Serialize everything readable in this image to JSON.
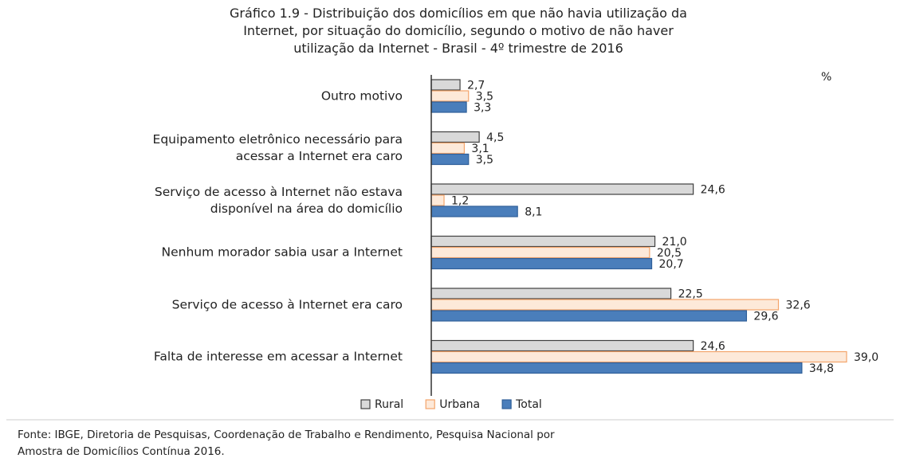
{
  "chart_data": {
    "type": "hbar",
    "title": "Gráfico 1.9 - Distribuição dos domicílios em que não havia utilização da\nInternet, por situação do domicílio, segundo o motivo de não haver\nutilização da Internet - Brasil - 4º trimestre de 2016",
    "unit": "%",
    "categories": [
      "Outro motivo",
      "Equipamento eletrônico necessário para\nacessar a Internet era caro",
      "Serviço de acesso à Internet não estava\ndisponível na área do domicílio",
      "Nenhum morador sabia usar a Internet",
      "Serviço de acesso à Internet era caro",
      "Falta de interesse em acessar a Internet"
    ],
    "series": [
      {
        "name": "Rural",
        "color": "#d9d9d9",
        "border": "#404040",
        "values": [
          2.7,
          4.5,
          24.6,
          21.0,
          22.5,
          24.6
        ],
        "value_labels": [
          "2,7",
          "4,5",
          "24,6",
          "21,0",
          "22,5",
          "24,6"
        ]
      },
      {
        "name": "Urbana",
        "color": "#fde9d9",
        "border": "#f4a46a",
        "values": [
          3.5,
          3.1,
          1.2,
          20.5,
          32.6,
          39.0
        ],
        "value_labels": [
          "3,5",
          "3,1",
          "1,2",
          "20,5",
          "32,6",
          "39,0"
        ]
      },
      {
        "name": "Total",
        "color": "#4a7ebb",
        "border": "#2f5f99",
        "values": [
          3.3,
          3.5,
          8.1,
          20.7,
          29.6,
          34.8
        ],
        "value_labels": [
          "3,3",
          "3,5",
          "8,1",
          "20,7",
          "29,6",
          "34,8"
        ]
      }
    ],
    "source": "Fonte: IBGE, Diretoria de Pesquisas, Coordenação de Trabalho e Rendimento, Pesquisa Nacional por\nAmostra de Domicílios Contínua 2016."
  }
}
